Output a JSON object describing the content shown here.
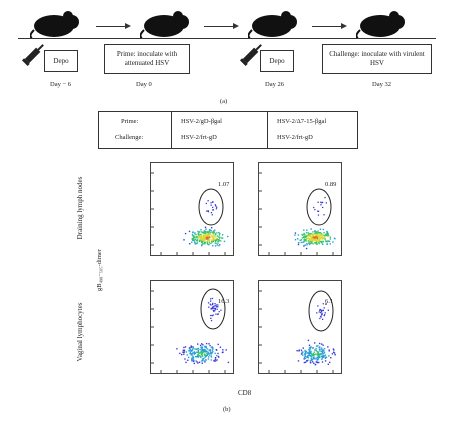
{
  "timeline": {
    "steps": [
      {
        "box": "Depo",
        "day": "Day − 6"
      },
      {
        "box": "Prime: inoculate with attenuated HSV",
        "day": "Day 0"
      },
      {
        "box": "Depo",
        "day": "Day 26"
      },
      {
        "box": "Challenge: inoculate with virulent HSV",
        "day": "Day 32"
      }
    ],
    "panel_label": "(a)"
  },
  "table": {
    "row_labels": [
      "Prime:",
      "Challenge:"
    ],
    "columns": [
      [
        "HSV-2/gD-βgal",
        "HSV-2/frt-gD"
      ],
      [
        "HSV-2/Δ7-15-βgal",
        "HSV-2/frt-gD"
      ]
    ]
  },
  "flow": {
    "row_labels": [
      "Draining lymph nodes",
      "Vaginal lymphocytes"
    ],
    "y_axis": "gB₄₉₈₋₅₀₅-dimer",
    "x_axis": "CD8",
    "values": [
      [
        "1.07",
        "0.89"
      ],
      [
        "16.3",
        "6.1"
      ]
    ],
    "panel_label": "(b)"
  },
  "colors": {
    "line": "#333333",
    "mouse": "#111111",
    "dots": [
      "#3b3bd6",
      "#2a9fd6",
      "#36c36a",
      "#d9d93a",
      "#e06a2a"
    ]
  }
}
